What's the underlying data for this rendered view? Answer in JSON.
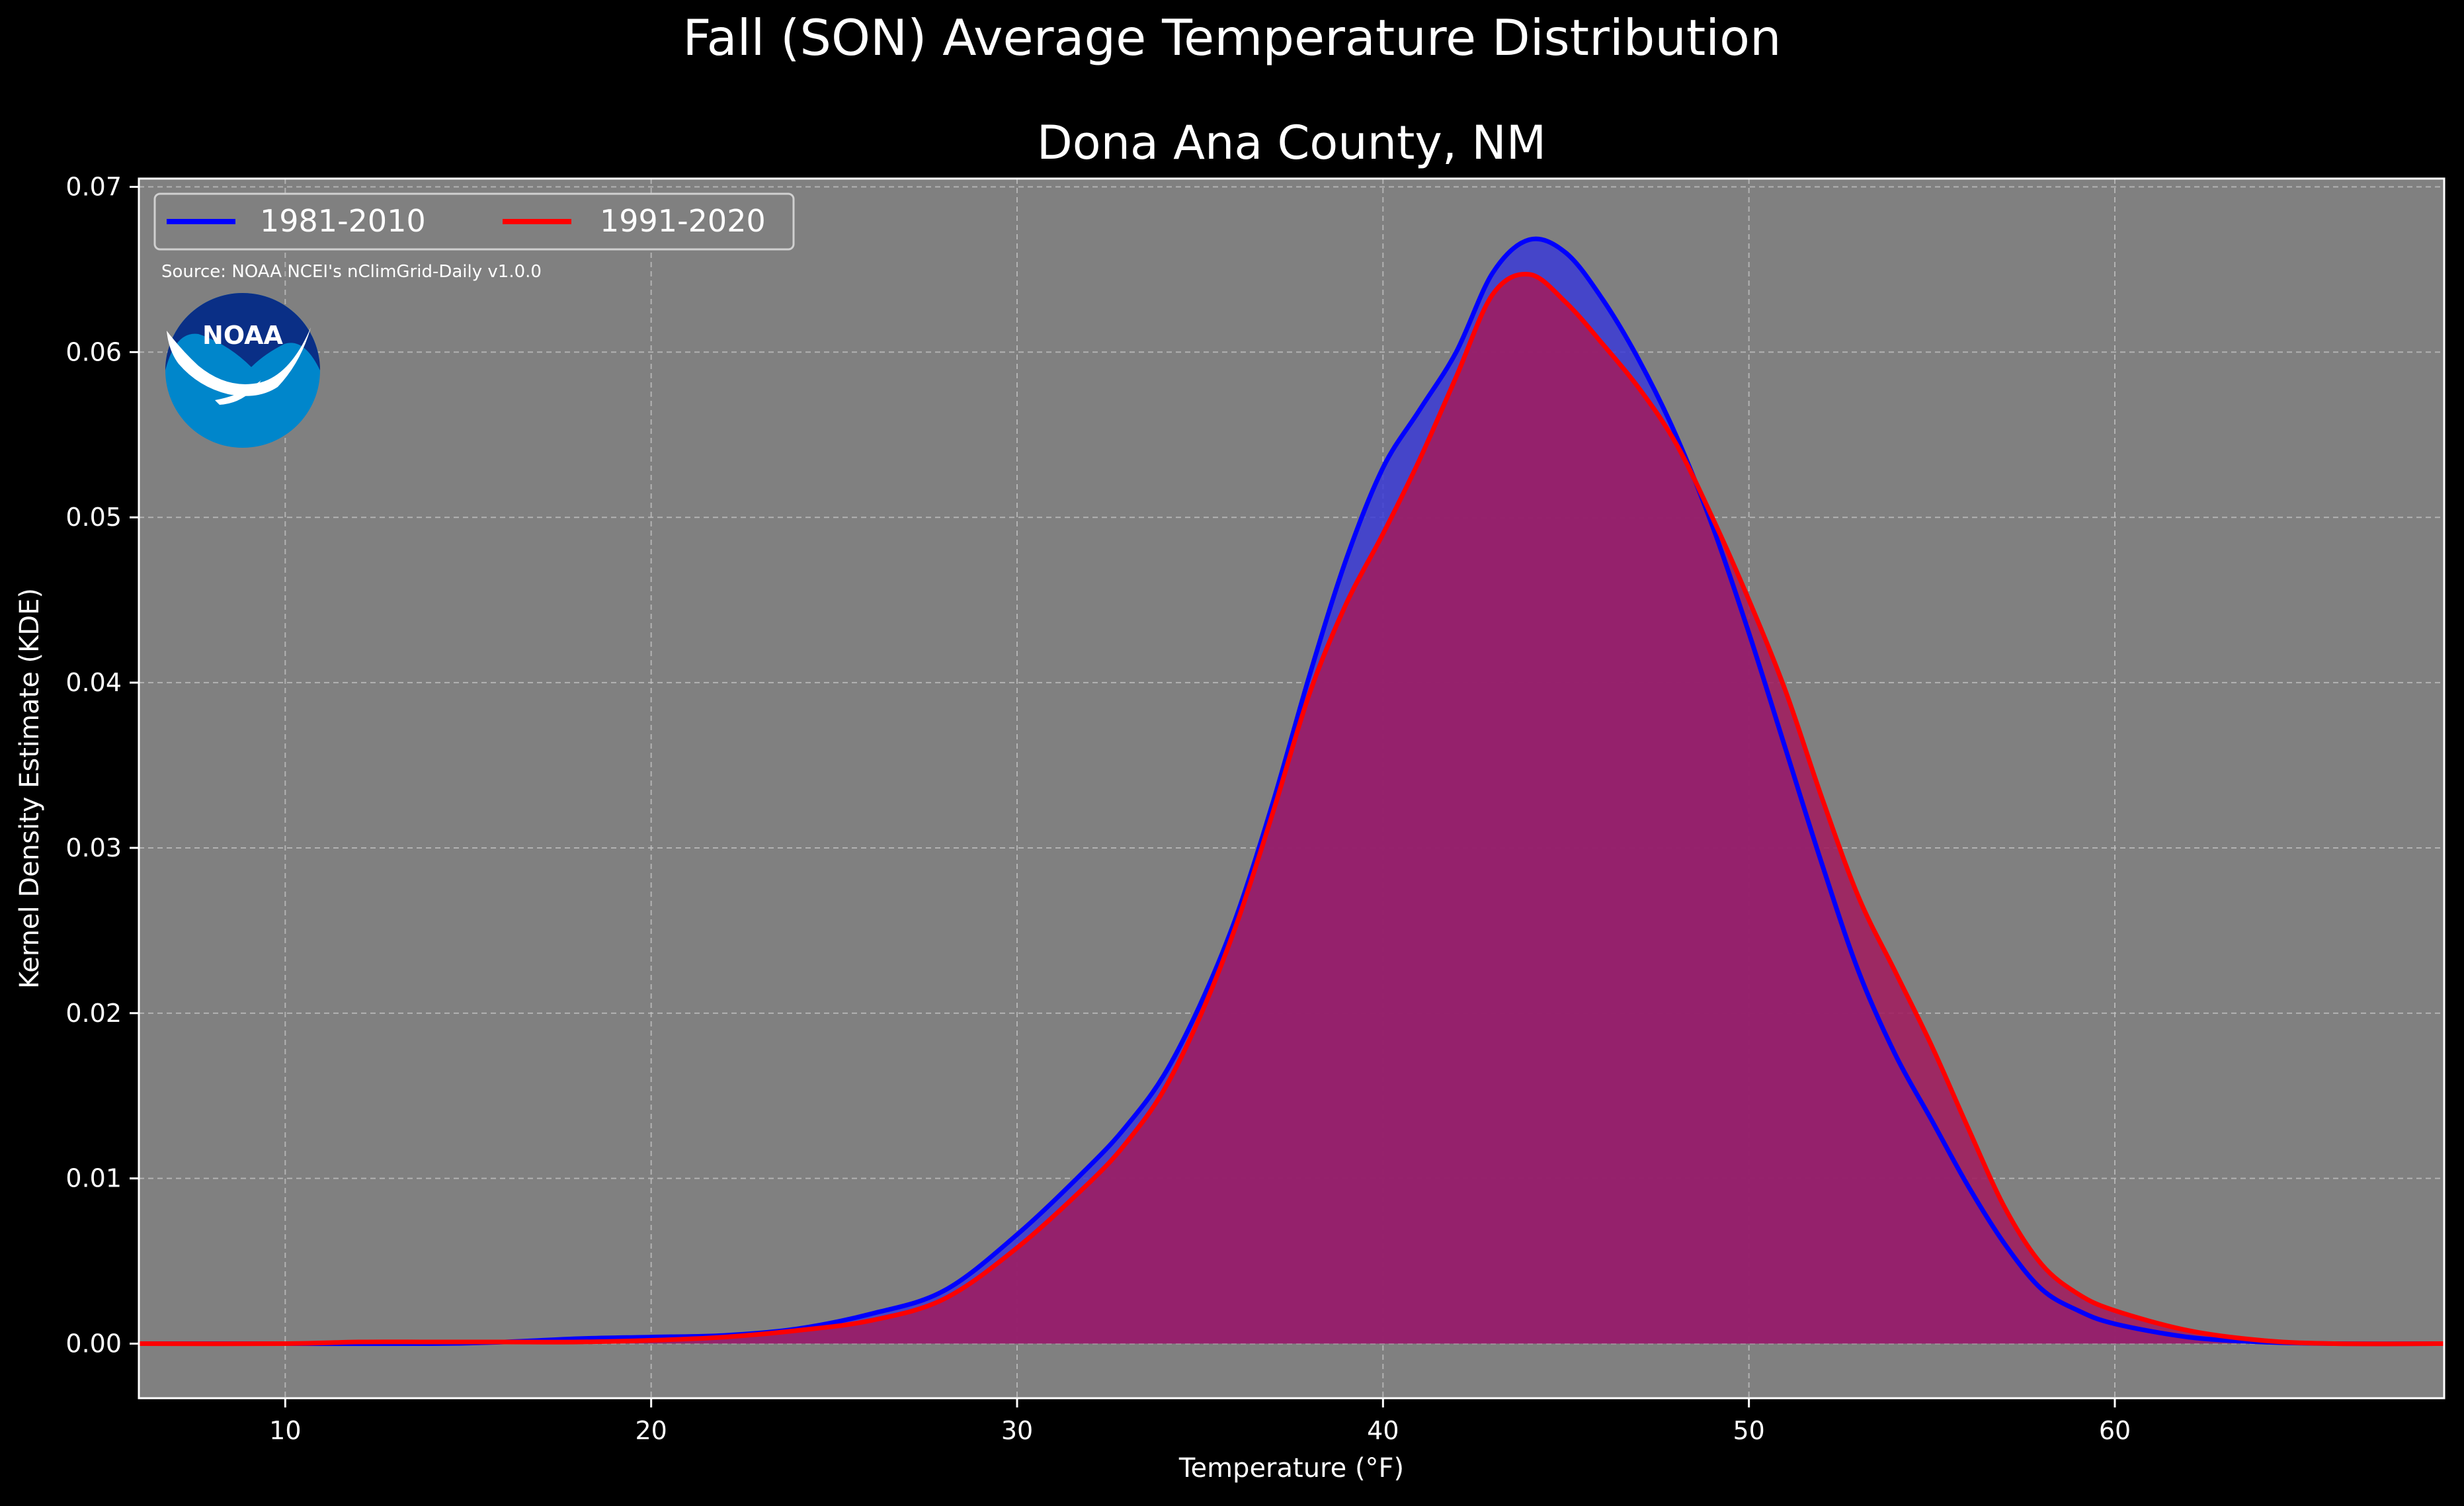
{
  "figure": {
    "suptitle": "Fall (SON) Average Temperature Distribution",
    "source_note": "Source: NOAA NCEI's nClimGrid-Daily v1.0.0",
    "logo_text": "NOAA",
    "background": "#000000",
    "plot_background": "#808080"
  },
  "chart_data": {
    "type": "area",
    "title": "Dona Ana County, NM",
    "xlabel": "Temperature (°F)",
    "ylabel": "Kernel Density Estimate (KDE)",
    "xlim": [
      6,
      69
    ],
    "ylim": [
      -0.0033,
      0.0705
    ],
    "xticks": [
      10,
      20,
      30,
      40,
      50,
      60
    ],
    "yticks": [
      0.0,
      0.01,
      0.02,
      0.03,
      0.04,
      0.05,
      0.06,
      0.07
    ],
    "ytick_labels": [
      "0.00",
      "0.01",
      "0.02",
      "0.03",
      "0.04",
      "0.05",
      "0.06",
      "0.07"
    ],
    "grid": true,
    "legend_position": "top-left",
    "series": [
      {
        "name": "1981-2010",
        "color": "#0000ff",
        "fill": "#3b3bd6",
        "x": [
          6,
          10,
          14,
          16,
          18,
          20,
          22,
          24,
          26,
          28,
          30,
          32,
          33,
          34,
          35,
          36,
          37,
          38,
          39,
          40,
          41,
          42,
          43,
          44,
          45,
          46,
          47,
          48,
          49,
          50,
          51,
          52,
          53,
          54,
          55,
          56,
          57,
          58,
          59,
          60,
          62,
          64,
          66,
          69
        ],
        "y": [
          0,
          0,
          0,
          0.0001,
          0.0003,
          0.0004,
          0.0005,
          0.0009,
          0.0018,
          0.0032,
          0.0066,
          0.0108,
          0.0132,
          0.0162,
          0.0205,
          0.0259,
          0.0328,
          0.0405,
          0.0475,
          0.053,
          0.0565,
          0.06,
          0.0648,
          0.0668,
          0.066,
          0.0632,
          0.0595,
          0.055,
          0.0495,
          0.043,
          0.036,
          0.029,
          0.0225,
          0.0175,
          0.0135,
          0.0095,
          0.006,
          0.0033,
          0.002,
          0.0012,
          0.0004,
          0.0001,
          0,
          0
        ]
      },
      {
        "name": "1991-2020",
        "color": "#ff0000",
        "fill": "#a01c5e",
        "x": [
          6,
          10,
          12,
          14,
          16,
          18,
          20,
          22,
          24,
          26,
          28,
          30,
          32,
          33,
          34,
          35,
          36,
          37,
          38,
          39,
          40,
          41,
          42,
          43,
          44,
          45,
          46,
          47,
          48,
          49,
          50,
          51,
          52,
          53,
          54,
          55,
          56,
          57,
          58,
          59,
          60,
          62,
          64,
          66,
          69
        ],
        "y": [
          0,
          0,
          0.0001,
          0.0001,
          0.0001,
          0.0001,
          0.0002,
          0.0004,
          0.0008,
          0.0014,
          0.0027,
          0.0058,
          0.0098,
          0.0122,
          0.0153,
          0.0198,
          0.0254,
          0.0322,
          0.0394,
          0.0448,
          0.049,
          0.0535,
          0.0585,
          0.0635,
          0.0647,
          0.063,
          0.0605,
          0.0578,
          0.0545,
          0.05,
          0.045,
          0.0395,
          0.033,
          0.027,
          0.0225,
          0.018,
          0.013,
          0.0082,
          0.0048,
          0.003,
          0.002,
          0.0008,
          0.0002,
          0,
          0
        ]
      }
    ]
  }
}
